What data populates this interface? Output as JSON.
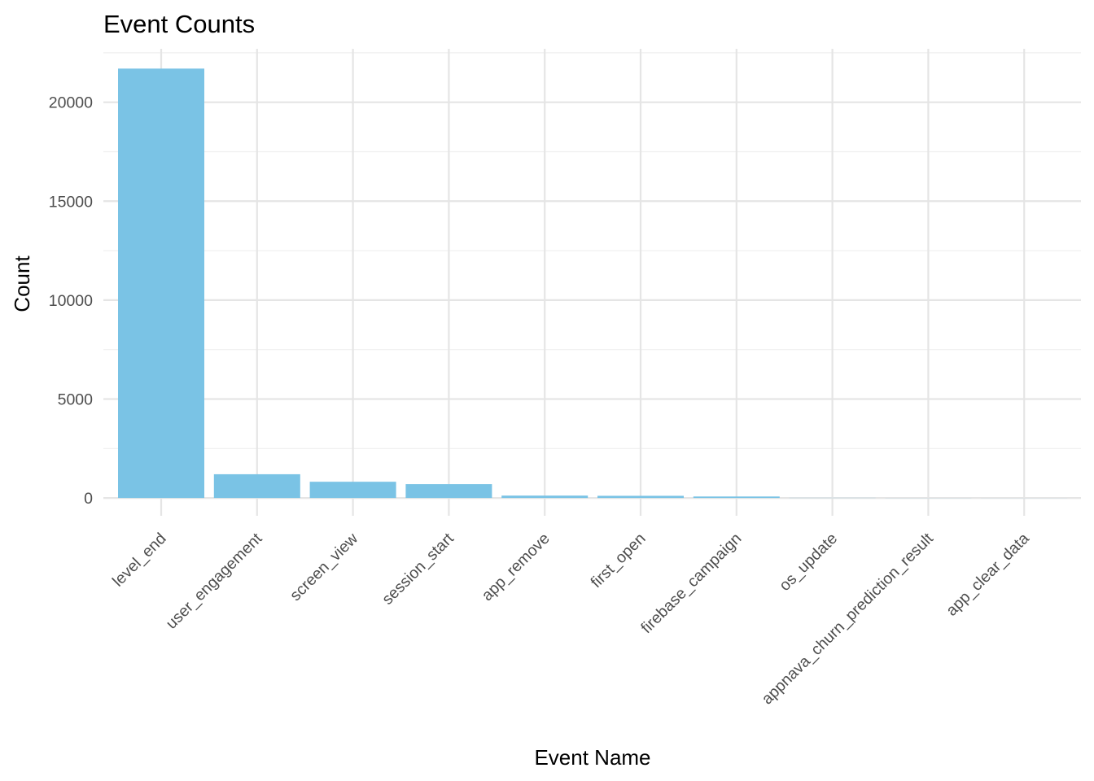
{
  "chart_data": {
    "type": "bar",
    "title": "Event Counts",
    "xlabel": "Event Name",
    "ylabel": "Count",
    "categories": [
      "level_end",
      "user_engagement",
      "screen_view",
      "session_start",
      "app_remove",
      "first_open",
      "firebase_campaign",
      "os_update",
      "appnava_churn_prediction_result",
      "app_clear_data"
    ],
    "values": [
      21700,
      1200,
      820,
      700,
      120,
      110,
      75,
      8,
      5,
      3
    ],
    "ylim": [
      -900,
      22700
    ],
    "yticks": [
      0,
      5000,
      10000,
      15000,
      20000
    ],
    "grid": true,
    "bar_color": "#7ac3e5",
    "grid_color": "#e5e5e5",
    "background": "#ffffff"
  }
}
